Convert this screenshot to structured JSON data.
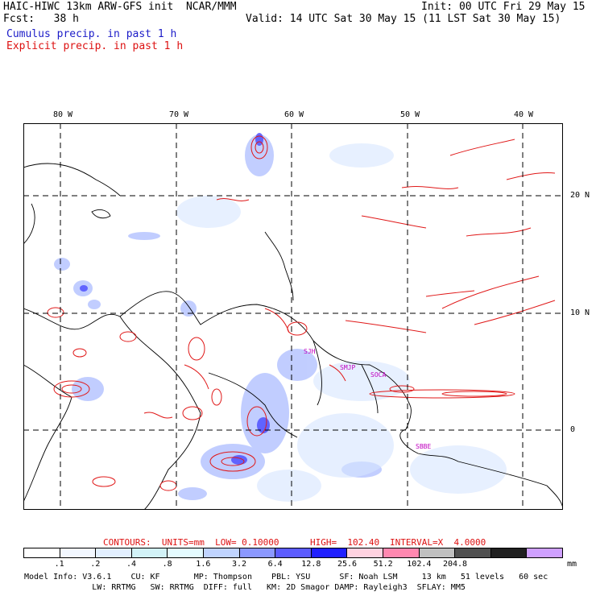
{
  "header": {
    "title_left": "HAIC-HIWC 13km ARW-GFS init  NCAR/MMM",
    "fcst": "Fcst:   38 h",
    "init": "Init: 00 UTC Fri 29 May 15",
    "valid": "Valid: 14 UTC Sat 30 May 15 (11 LST Sat 30 May 15)",
    "cumulus": "Cumulus precip. in past 1 h",
    "explicit": "Explicit precip. in past 1 h"
  },
  "axes": {
    "lon": [
      "80 W",
      "70 W",
      "60 W",
      "50 W",
      "40 W"
    ],
    "lat": [
      "20 N",
      "10 N",
      "0"
    ]
  },
  "stations": [
    "SJH",
    "SMJP",
    "SOCA",
    "SBBE"
  ],
  "contour_line": {
    "contours": "CONTOURS:  UNITS=mm  LOW= 0.10000",
    "high": "HIGH=  102.40",
    "interval": "INTERVAL=X  4.0000"
  },
  "legend": {
    "colors": [
      "#ffffff",
      "#f2f7ff",
      "#e2efff",
      "#d2f2f7",
      "#e4fbff",
      "#c0d4ff",
      "#8b98ff",
      "#5c5cff",
      "#2020ff",
      "#ffd2e0",
      "#ff88b0",
      "#c0c0c0",
      "#505050",
      "#202020",
      "#cfa0ff"
    ],
    "ticks": [
      ".1",
      ".2",
      ".4",
      ".8",
      "1.6",
      "3.2",
      "6.4",
      "12.8",
      "25.6",
      "51.2",
      "102.4",
      "204.8"
    ],
    "unit": "mm"
  },
  "footer": {
    "line1": "Model Info: V3.6.1    CU: KF       MP: Thompson    PBL: YSU      SF: Noah LSM     13 km   51 levels   60 sec",
    "line2": "              LW: RRTMG   SW: RRTMG  DIFF: full   KM: 2D Smagor DAMP: Rayleigh3  SFLAY: MM5"
  }
}
